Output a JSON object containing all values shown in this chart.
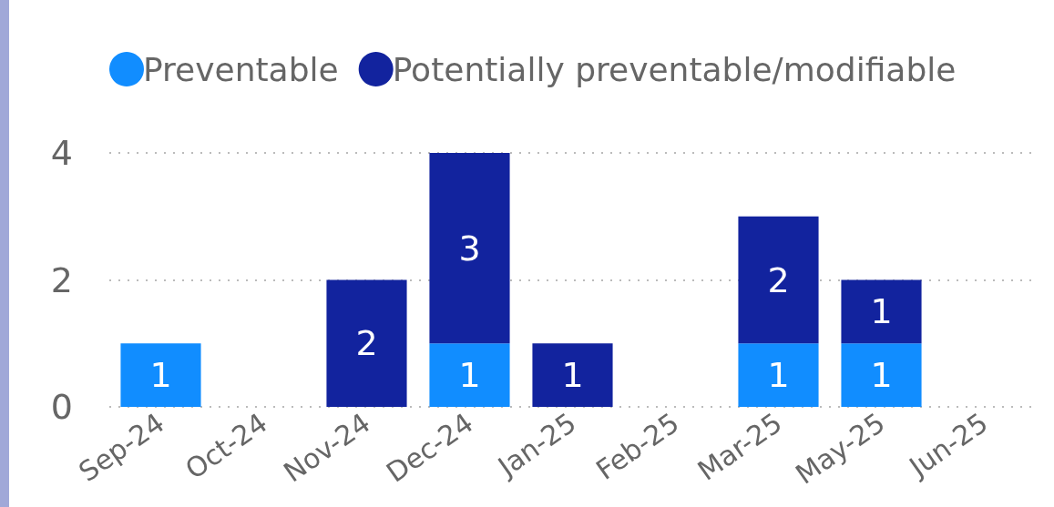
{
  "chart_data": {
    "type": "bar",
    "stacked": true,
    "categories": [
      "Sep-24",
      "Oct-24",
      "Nov-24",
      "Dec-24",
      "Jan-25",
      "Feb-25",
      "Mar-25",
      "May-25",
      "Jun-25"
    ],
    "series": [
      {
        "name": "Preventable",
        "color": "#118dff",
        "values": [
          1,
          null,
          null,
          1,
          null,
          null,
          1,
          1,
          null
        ]
      },
      {
        "name": "Potentially preventable/modifiable",
        "color": "#12239e",
        "values": [
          null,
          null,
          2,
          3,
          1,
          null,
          2,
          1,
          null
        ]
      }
    ],
    "ylim": [
      0,
      4
    ],
    "yticks": [
      0,
      2,
      4
    ],
    "grid": "y",
    "legend": "top left",
    "data_labels": true
  }
}
